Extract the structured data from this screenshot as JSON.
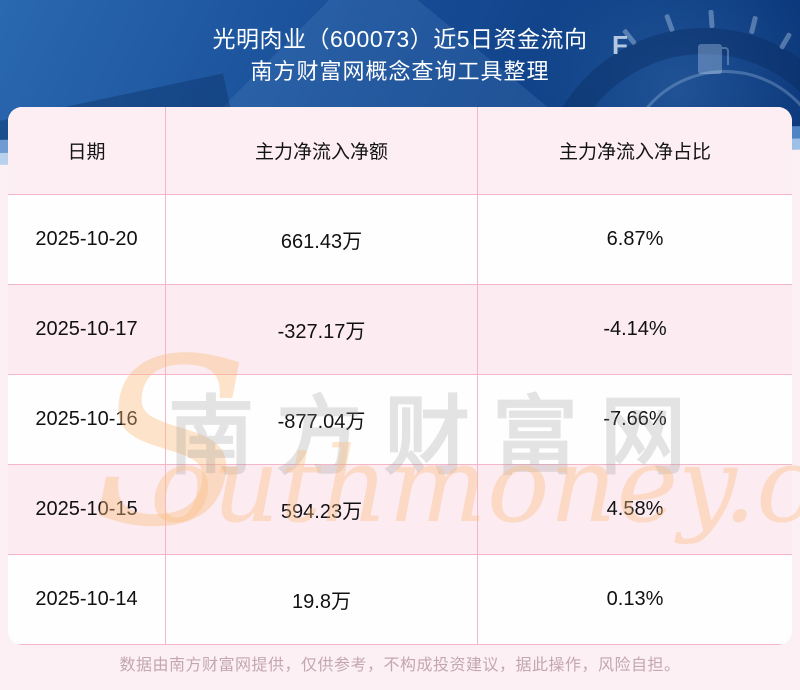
{
  "header": {
    "title_line1": "光明肉业（600073）近5日资金流向",
    "title_line2": "南方财富网概念查询工具整理"
  },
  "chart_data": {
    "type": "table",
    "title": "光明肉业（600073）近5日资金流向",
    "subtitle": "南方财富网概念查询工具整理",
    "columns": [
      "日期",
      "主力净流入净额",
      "主力净流入净占比"
    ],
    "rows": [
      [
        "2025-10-20",
        "661.43万",
        "6.87%"
      ],
      [
        "2025-10-17",
        "-327.17万",
        "-4.14%"
      ],
      [
        "2025-10-16",
        "-877.04万",
        "-7.66%"
      ],
      [
        "2025-10-15",
        "594.23万",
        "4.58%"
      ],
      [
        "2025-10-14",
        "19.8万",
        "0.13%"
      ]
    ],
    "net_inflow_wan": [
      661.43,
      -327.17,
      -877.04,
      594.23,
      19.8
    ],
    "net_inflow_pct": [
      6.87,
      -4.14,
      -7.66,
      4.58,
      0.13
    ]
  },
  "watermark": {
    "cn": "南方财富网",
    "latin_initial": "S",
    "latin_rest": "outhmoney.com"
  },
  "decor": {
    "gauge_label": "F"
  },
  "footer": {
    "disclaimer": "数据由南方财富网提供，仅供参考，不构成投资建议，据此操作，风险自担。"
  },
  "colors": {
    "header_blue_dark": "#0a3578",
    "header_blue_light": "#2a68b0",
    "band_light_blue": "#a9c8e9",
    "page_pink": "#fcf0f4",
    "row_pink": "#fcebf1",
    "row_white": "#ffffff",
    "grid_line_pink": "#f5b6c7",
    "watermark_orange": "#fabc7d",
    "watermark_gray": "#969696",
    "footer_text": "#c3a6b1",
    "title_text": "#ffffff",
    "cell_text": "#111111"
  }
}
